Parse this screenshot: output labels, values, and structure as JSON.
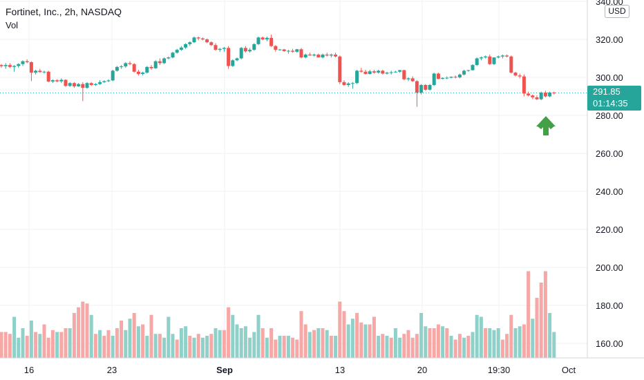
{
  "header": {
    "title": "Fortinet, Inc., 2h, NASDAQ",
    "indicator": "Vol",
    "currency": "USD"
  },
  "last_price": {
    "price": "291.85",
    "countdown": "01:14:35"
  },
  "colors": {
    "up": "#26a69a",
    "down": "#ef5350",
    "vol_up": "#8fd1c8",
    "vol_down": "#f5a8a6",
    "grid": "#eef0f3",
    "arrow": "#43a047"
  },
  "annotation": {
    "icon": "green-up-arrow"
  },
  "chart_data": {
    "type": "candlestick",
    "title": "Fortinet, Inc., 2h, NASDAQ",
    "y_axis": {
      "ticks": [
        160,
        180,
        200,
        220,
        240,
        260,
        280,
        300,
        320,
        340
      ],
      "range": [
        155,
        340
      ]
    },
    "x_axis": {
      "ticks": [
        "16",
        "23",
        "Sep",
        "13",
        "20",
        "19:30",
        "Oct"
      ]
    },
    "last_price": 291.85,
    "candles": [
      [
        306.5,
        307.0,
        305.0,
        305.9
      ],
      [
        305.9,
        307.5,
        304.5,
        306.5
      ],
      [
        306.5,
        307.5,
        305.0,
        305.5
      ],
      [
        305.5,
        306.5,
        303.0,
        306.0
      ],
      [
        306.0,
        307.5,
        305.0,
        307.0
      ],
      [
        307.0,
        309.0,
        306.0,
        308.5
      ],
      [
        308.5,
        309.5,
        307.5,
        308.0
      ],
      [
        308.0,
        308.5,
        298.0,
        302.5
      ],
      [
        302.5,
        304.0,
        301.5,
        303.5
      ],
      [
        303.5,
        304.5,
        302.5,
        302.8
      ],
      [
        302.8,
        303.5,
        302.0,
        303.0
      ],
      [
        303.0,
        303.5,
        297.5,
        297.8
      ],
      [
        297.8,
        299.0,
        297.0,
        298.5
      ],
      [
        298.5,
        299.0,
        297.5,
        297.9
      ],
      [
        297.9,
        299.5,
        297.0,
        298.7
      ],
      [
        298.7,
        299.0,
        295.0,
        295.5
      ],
      [
        295.5,
        297.5,
        295.0,
        297.0
      ],
      [
        297.0,
        297.5,
        294.5,
        295.3
      ],
      [
        295.3,
        297.0,
        295.0,
        296.5
      ],
      [
        296.5,
        297.5,
        287.5,
        294.5
      ],
      [
        294.5,
        297.5,
        294.0,
        297.0
      ],
      [
        297.0,
        297.5,
        295.5,
        296.0
      ],
      [
        296.0,
        297.0,
        295.5,
        296.5
      ],
      [
        296.5,
        298.5,
        296.0,
        297.5
      ],
      [
        297.5,
        298.5,
        297.0,
        298.0
      ],
      [
        298.0,
        299.0,
        297.5,
        298.4
      ],
      [
        298.4,
        304.0,
        298.0,
        303.5
      ],
      [
        303.5,
        306.0,
        303.0,
        305.5
      ],
      [
        305.5,
        306.5,
        304.5,
        305.8
      ],
      [
        305.8,
        308.0,
        305.0,
        307.5
      ],
      [
        307.5,
        308.5,
        306.5,
        307.0
      ],
      [
        307.0,
        307.5,
        302.5,
        303.0
      ],
      [
        303.0,
        304.0,
        301.0,
        301.8
      ],
      [
        301.8,
        303.0,
        301.0,
        302.5
      ],
      [
        302.5,
        306.0,
        302.0,
        305.5
      ],
      [
        305.5,
        306.5,
        304.0,
        304.8
      ],
      [
        304.8,
        309.0,
        304.5,
        308.5
      ],
      [
        308.5,
        310.0,
        306.5,
        307.5
      ],
      [
        307.5,
        310.5,
        307.0,
        310.0
      ],
      [
        310.0,
        311.0,
        309.5,
        310.5
      ],
      [
        310.5,
        313.5,
        310.0,
        313.0
      ],
      [
        313.0,
        315.0,
        312.5,
        314.5
      ],
      [
        314.5,
        316.5,
        314.0,
        315.7
      ],
      [
        315.7,
        318.0,
        315.0,
        317.5
      ],
      [
        317.5,
        319.0,
        316.5,
        318.5
      ],
      [
        318.5,
        321.5,
        318.0,
        321.0
      ],
      [
        321.0,
        321.5,
        319.5,
        320.5
      ],
      [
        320.5,
        321.0,
        319.5,
        320.0
      ],
      [
        320.0,
        320.5,
        318.0,
        318.5
      ],
      [
        318.5,
        319.0,
        316.5,
        317.0
      ],
      [
        317.0,
        318.0,
        314.0,
        314.5
      ],
      [
        314.5,
        315.5,
        313.5,
        315.0
      ],
      [
        315.0,
        316.0,
        313.5,
        315.5
      ],
      [
        315.5,
        316.5,
        304.5,
        306.0
      ],
      [
        306.0,
        309.5,
        305.5,
        309.0
      ],
      [
        309.0,
        310.5,
        308.5,
        310.0
      ],
      [
        310.0,
        316.0,
        309.5,
        315.5
      ],
      [
        315.5,
        316.5,
        313.0,
        313.7
      ],
      [
        313.7,
        315.5,
        313.0,
        314.5
      ],
      [
        314.5,
        318.0,
        314.0,
        317.5
      ],
      [
        317.5,
        321.5,
        317.0,
        321.0
      ],
      [
        321.0,
        321.5,
        319.5,
        320.0
      ],
      [
        320.0,
        321.5,
        319.0,
        320.8
      ],
      [
        320.8,
        322.5,
        316.0,
        316.5
      ],
      [
        316.5,
        317.0,
        313.5,
        314.5
      ],
      [
        314.5,
        315.0,
        314.0,
        314.7
      ],
      [
        314.7,
        315.0,
        313.5,
        313.8
      ],
      [
        313.8,
        314.5,
        312.5,
        314.0
      ],
      [
        314.0,
        315.0,
        313.0,
        313.5
      ],
      [
        313.5,
        315.0,
        313.0,
        314.8
      ],
      [
        314.8,
        315.5,
        310.0,
        310.5
      ],
      [
        310.5,
        312.5,
        310.0,
        312.0
      ],
      [
        312.0,
        313.0,
        311.5,
        311.5
      ],
      [
        311.5,
        312.5,
        311.0,
        312.0
      ],
      [
        312.0,
        312.5,
        310.5,
        310.5
      ],
      [
        310.5,
        312.5,
        310.0,
        312.0
      ],
      [
        312.0,
        313.0,
        311.0,
        311.5
      ],
      [
        311.5,
        312.5,
        310.5,
        312.0
      ],
      [
        312.0,
        313.0,
        310.5,
        311.0
      ],
      [
        311.0,
        311.5,
        296.5,
        297.5
      ],
      [
        297.5,
        298.5,
        295.5,
        296.0
      ],
      [
        296.0,
        297.5,
        295.0,
        296.8
      ],
      [
        296.8,
        297.5,
        294.0,
        297.0
      ],
      [
        297.0,
        304.0,
        296.5,
        303.5
      ],
      [
        303.5,
        305.0,
        302.5,
        303.0
      ],
      [
        303.0,
        304.0,
        301.5,
        301.8
      ],
      [
        301.8,
        304.0,
        301.5,
        303.2
      ],
      [
        303.2,
        304.0,
        302.0,
        302.5
      ],
      [
        302.5,
        304.0,
        302.0,
        303.5
      ],
      [
        303.5,
        304.0,
        301.5,
        302.0
      ],
      [
        302.0,
        303.0,
        301.5,
        302.5
      ],
      [
        302.5,
        303.5,
        301.5,
        302.7
      ],
      [
        302.7,
        303.5,
        302.5,
        303.0
      ],
      [
        303.0,
        304.0,
        302.5,
        303.8
      ],
      [
        303.8,
        304.0,
        298.5,
        299.0
      ],
      [
        299.0,
        300.0,
        298.0,
        299.5
      ],
      [
        299.5,
        300.5,
        297.5,
        298.0
      ],
      [
        298.0,
        298.5,
        284.5,
        292.0
      ],
      [
        292.0,
        296.5,
        291.0,
        296.0
      ],
      [
        296.0,
        296.5,
        293.0,
        293.5
      ],
      [
        293.5,
        296.5,
        293.0,
        296.0
      ],
      [
        296.0,
        302.5,
        295.5,
        302.0
      ],
      [
        302.0,
        302.5,
        299.0,
        299.2
      ],
      [
        299.2,
        300.0,
        299.0,
        299.7
      ],
      [
        299.7,
        300.5,
        299.0,
        299.8
      ],
      [
        299.8,
        300.5,
        299.5,
        300.3
      ],
      [
        300.3,
        301.0,
        299.5,
        300.0
      ],
      [
        300.0,
        302.0,
        299.5,
        301.5
      ],
      [
        301.5,
        304.0,
        301.0,
        303.5
      ],
      [
        303.5,
        304.0,
        303.0,
        303.8
      ],
      [
        303.8,
        307.0,
        303.5,
        306.5
      ],
      [
        306.5,
        310.5,
        306.0,
        310.0
      ],
      [
        310.0,
        311.0,
        309.0,
        310.5
      ],
      [
        310.5,
        311.5,
        310.0,
        311.0
      ],
      [
        311.0,
        312.0,
        306.5,
        307.0
      ],
      [
        307.0,
        310.5,
        306.5,
        310.5
      ],
      [
        310.5,
        311.5,
        310.0,
        311.0
      ],
      [
        311.0,
        312.0,
        310.0,
        311.5
      ],
      [
        311.5,
        312.0,
        310.5,
        311.0
      ],
      [
        311.0,
        311.5,
        302.0,
        302.5
      ],
      [
        302.5,
        303.0,
        300.5,
        301.0
      ],
      [
        301.0,
        302.0,
        299.5,
        300.5
      ],
      [
        300.5,
        301.5,
        290.0,
        291.5
      ],
      [
        291.5,
        292.5,
        290.0,
        290.5
      ],
      [
        290.5,
        291.0,
        288.5,
        289.5
      ],
      [
        289.5,
        290.5,
        288.0,
        288.5
      ],
      [
        288.5,
        292.5,
        288.0,
        292.0
      ],
      [
        292.0,
        293.0,
        289.5,
        290.0
      ],
      [
        290.0,
        292.5,
        289.5,
        292.0
      ],
      [
        292.0,
        292.5,
        291.0,
        291.85
      ]
    ],
    "volume": [
      [
        0,
        166,
        0
      ],
      [
        1,
        166,
        0
      ],
      [
        2,
        165,
        0
      ],
      [
        3,
        174,
        1
      ],
      [
        4,
        163,
        1
      ],
      [
        5,
        168,
        1
      ],
      [
        6,
        164,
        0
      ],
      [
        7,
        172,
        1
      ],
      [
        8,
        166,
        0
      ],
      [
        9,
        165,
        1
      ],
      [
        10,
        170,
        0
      ],
      [
        11,
        163,
        0
      ],
      [
        12,
        167,
        0
      ],
      [
        13,
        166,
        1
      ],
      [
        14,
        166,
        0
      ],
      [
        15,
        168,
        0
      ],
      [
        16,
        168,
        1
      ],
      [
        17,
        176,
        0
      ],
      [
        18,
        179,
        0
      ],
      [
        19,
        182,
        0
      ],
      [
        20,
        181,
        0
      ],
      [
        21,
        175,
        1
      ],
      [
        22,
        165,
        0
      ],
      [
        23,
        167,
        1
      ],
      [
        24,
        164,
        0
      ],
      [
        25,
        167,
        0
      ],
      [
        26,
        164,
        1
      ],
      [
        27,
        168,
        0
      ],
      [
        28,
        172,
        0
      ],
      [
        29,
        167,
        1
      ],
      [
        30,
        173,
        1
      ],
      [
        31,
        176,
        0
      ],
      [
        32,
        169,
        1
      ],
      [
        33,
        170,
        0
      ],
      [
        34,
        164,
        1
      ],
      [
        35,
        175,
        0
      ],
      [
        36,
        165,
        1
      ],
      [
        37,
        165,
        0
      ],
      [
        38,
        163,
        1
      ],
      [
        39,
        174,
        1
      ],
      [
        40,
        165,
        1
      ],
      [
        41,
        162,
        0
      ],
      [
        42,
        168,
        1
      ],
      [
        43,
        169,
        1
      ],
      [
        44,
        164,
        0
      ],
      [
        45,
        163,
        1
      ],
      [
        46,
        165,
        0
      ],
      [
        47,
        163,
        1
      ],
      [
        48,
        164,
        1
      ],
      [
        49,
        165,
        0
      ],
      [
        50,
        168,
        1
      ],
      [
        51,
        167,
        1
      ],
      [
        52,
        167,
        0
      ],
      [
        53,
        179,
        0
      ],
      [
        54,
        175,
        1
      ],
      [
        55,
        170,
        1
      ],
      [
        56,
        168,
        1
      ],
      [
        57,
        169,
        1
      ],
      [
        58,
        163,
        1
      ],
      [
        59,
        166,
        1
      ],
      [
        60,
        175,
        1
      ],
      [
        61,
        168,
        0
      ],
      [
        62,
        163,
        1
      ],
      [
        63,
        168,
        0
      ],
      [
        64,
        162,
        0
      ],
      [
        65,
        164,
        1
      ],
      [
        66,
        164,
        0
      ],
      [
        67,
        164,
        1
      ],
      [
        68,
        163,
        0
      ],
      [
        69,
        162,
        0
      ],
      [
        70,
        177,
        0
      ],
      [
        71,
        170,
        0
      ],
      [
        72,
        166,
        1
      ],
      [
        73,
        167,
        0
      ],
      [
        74,
        168,
        1
      ],
      [
        75,
        168,
        0
      ],
      [
        76,
        167,
        1
      ],
      [
        77,
        164,
        0
      ],
      [
        78,
        164,
        1
      ],
      [
        79,
        182,
        0
      ],
      [
        80,
        177,
        0
      ],
      [
        81,
        170,
        1
      ],
      [
        82,
        173,
        1
      ],
      [
        83,
        176,
        0
      ],
      [
        84,
        171,
        0
      ],
      [
        85,
        170,
        1
      ],
      [
        86,
        170,
        0
      ],
      [
        87,
        174,
        0
      ],
      [
        88,
        164,
        1
      ],
      [
        89,
        165,
        0
      ],
      [
        90,
        164,
        1
      ],
      [
        91,
        163,
        0
      ],
      [
        92,
        168,
        1
      ],
      [
        93,
        163,
        1
      ],
      [
        94,
        165,
        0
      ],
      [
        95,
        167,
        0
      ],
      [
        96,
        163,
        0
      ],
      [
        97,
        165,
        0
      ],
      [
        98,
        176,
        1
      ],
      [
        99,
        169,
        1
      ],
      [
        100,
        168,
        0
      ],
      [
        101,
        168,
        0
      ],
      [
        102,
        170,
        0
      ],
      [
        103,
        169,
        1
      ],
      [
        104,
        168,
        0
      ],
      [
        105,
        164,
        1
      ],
      [
        106,
        162,
        0
      ],
      [
        107,
        165,
        0
      ],
      [
        108,
        163,
        1
      ],
      [
        109,
        164,
        0
      ],
      [
        110,
        166,
        1
      ],
      [
        111,
        175,
        1
      ],
      [
        112,
        174,
        1
      ],
      [
        113,
        168,
        0
      ],
      [
        114,
        168,
        1
      ],
      [
        115,
        167,
        1
      ],
      [
        116,
        168,
        1
      ],
      [
        117,
        162,
        0
      ],
      [
        118,
        165,
        0
      ],
      [
        119,
        175,
        0
      ],
      [
        120,
        168,
        1
      ],
      [
        121,
        169,
        1
      ],
      [
        122,
        170,
        0
      ],
      [
        123,
        198,
        0
      ],
      [
        124,
        173,
        1
      ],
      [
        125,
        184,
        0
      ],
      [
        126,
        192,
        0
      ],
      [
        127,
        198,
        0
      ],
      [
        128,
        176,
        1
      ],
      [
        129,
        166,
        1
      ]
    ]
  }
}
